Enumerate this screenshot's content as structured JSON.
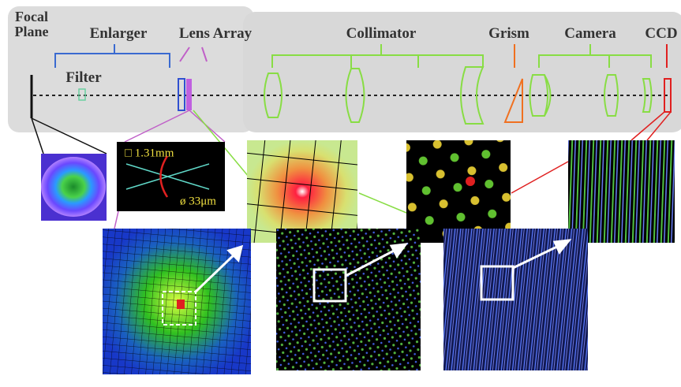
{
  "labels": {
    "focal_plane": "Focal Plane",
    "enlarger": "Enlarger",
    "lens_array": "Lens Array",
    "collimator": "Collimator",
    "grism": "Grism",
    "camera": "Camera",
    "ccd": "CCD",
    "filter": "Filter"
  },
  "inset": {
    "square_size": "□ 1.31mm",
    "diameter": "ø 33μm"
  }
}
